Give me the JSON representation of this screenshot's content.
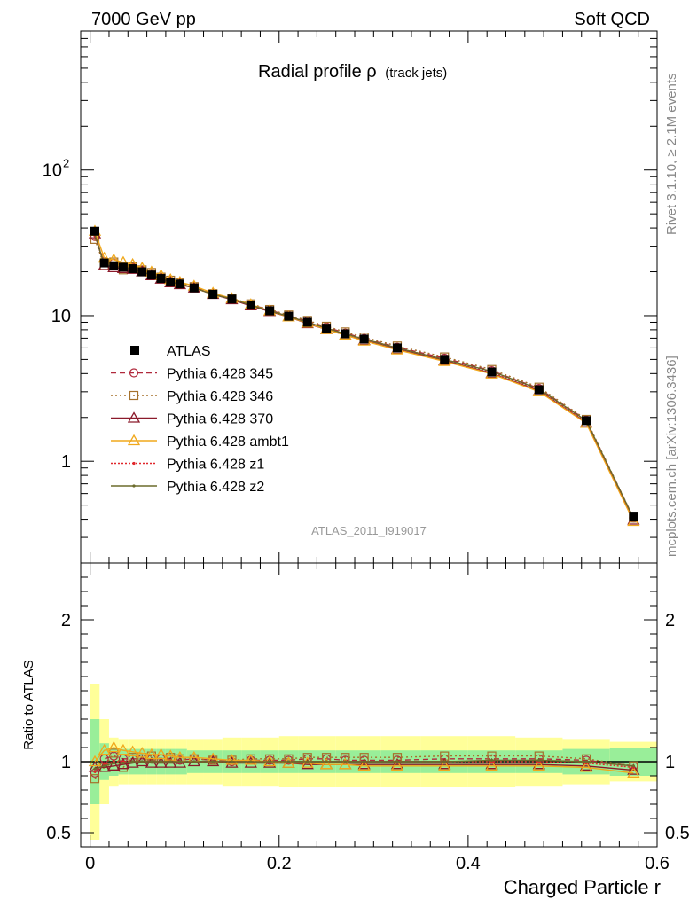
{
  "header": {
    "left": "7000 GeV pp",
    "right": "Soft QCD"
  },
  "side_text": {
    "right_top": "Rivet 3.1.10, ≥ 2.1M events",
    "right_bottom": "mcplots.cern.ch [arXiv:1306.3436]"
  },
  "watermark": "ATLAS_2011_I919017",
  "chart_data": {
    "type": "line",
    "title": "Radial profile ρ",
    "title_suffix": "(track jets)",
    "xlabel": "Charged Particle r",
    "ylabel_bottom": "Ratio to ATLAS",
    "xlim": [
      -0.01,
      0.6
    ],
    "ylim_main": [
      0.2,
      900
    ],
    "ylim_ratio": [
      0.4,
      2.4
    ],
    "yscale_main": "log",
    "x_ticks": [
      "0",
      "0.2",
      "0.4",
      "0.6"
    ],
    "y_ticks_main": [
      "1",
      "10",
      "10^2"
    ],
    "y_ticks_ratio": [
      "0.5",
      "1",
      "2"
    ],
    "legend_position": "center-left",
    "x": [
      0.005,
      0.015,
      0.025,
      0.035,
      0.045,
      0.055,
      0.065,
      0.075,
      0.085,
      0.095,
      0.11,
      0.13,
      0.15,
      0.17,
      0.19,
      0.21,
      0.23,
      0.25,
      0.27,
      0.29,
      0.325,
      0.375,
      0.425,
      0.475,
      0.525,
      0.575
    ],
    "atlas": {
      "name": "ATLAS",
      "values": [
        38,
        23,
        22,
        21.5,
        21,
        20,
        19,
        18,
        17,
        16.5,
        15.5,
        14,
        13,
        11.8,
        10.8,
        9.9,
        9,
        8.2,
        7.5,
        6.9,
        6,
        5,
        4.1,
        3.1,
        1.9,
        0.42
      ],
      "ratio_band_inner": [
        0.3,
        0.13,
        0.1,
        0.09,
        0.09,
        0.09,
        0.09,
        0.09,
        0.09,
        0.09,
        0.08,
        0.08,
        0.08,
        0.08,
        0.08,
        0.08,
        0.08,
        0.08,
        0.08,
        0.08,
        0.08,
        0.08,
        0.08,
        0.08,
        0.09,
        0.1
      ],
      "ratio_band_outer": [
        0.55,
        0.3,
        0.17,
        0.16,
        0.16,
        0.16,
        0.16,
        0.16,
        0.16,
        0.16,
        0.16,
        0.16,
        0.17,
        0.17,
        0.17,
        0.18,
        0.18,
        0.18,
        0.18,
        0.18,
        0.18,
        0.18,
        0.18,
        0.17,
        0.16,
        0.14
      ]
    },
    "series": [
      {
        "name": "Pythia 6.428 345",
        "color": "#b0293c",
        "dash": "6,4",
        "marker": "circle-open",
        "ratio": [
          0.92,
          1.02,
          1.04,
          1.02,
          1.02,
          1.02,
          1.02,
          1.02,
          1.02,
          1.01,
          1.02,
          1.01,
          1.0,
          1.01,
          1.01,
          1.01,
          1.02,
          1.02,
          1.01,
          1.01,
          1.01,
          1.02,
          1.02,
          1.02,
          1.01,
          0.97
        ]
      },
      {
        "name": "Pythia 6.428 346",
        "color": "#a5712b",
        "dash": "2,3",
        "marker": "square-open",
        "ratio": [
          0.88,
          0.96,
          1.06,
          0.96,
          1.03,
          1.03,
          1.04,
          1.02,
          1.03,
          1.02,
          1.02,
          1.01,
          1.01,
          1.02,
          1.02,
          1.02,
          1.03,
          1.03,
          1.03,
          1.03,
          1.03,
          1.04,
          1.04,
          1.04,
          1.02,
          0.97
        ]
      },
      {
        "name": "Pythia 6.428 370",
        "color": "#8b1a2b",
        "dash": "",
        "marker": "triangle-open",
        "ratio": [
          0.96,
          0.96,
          0.97,
          0.98,
          0.99,
          1.0,
          0.99,
          0.99,
          0.99,
          0.99,
          1.0,
          1.0,
          0.99,
          0.99,
          0.99,
          0.99,
          0.98,
          0.98,
          0.98,
          0.98,
          0.98,
          0.98,
          0.98,
          0.98,
          0.97,
          0.94
        ]
      },
      {
        "name": "Pythia 6.428 ambt1",
        "color": "#f0a81c",
        "dash": "",
        "marker": "triangle-open",
        "ratio": [
          1.0,
          1.08,
          1.1,
          1.08,
          1.07,
          1.06,
          1.05,
          1.05,
          1.04,
          1.03,
          1.03,
          1.02,
          1.01,
          1.01,
          1.0,
          0.99,
          0.99,
          0.98,
          0.98,
          0.97,
          0.97,
          0.97,
          0.97,
          0.97,
          0.96,
          0.92
        ]
      },
      {
        "name": "Pythia 6.428 z1",
        "color": "#e0262b",
        "dash": "2,2",
        "marker": "dot",
        "ratio": [
          0.93,
          0.98,
          1.0,
          1.0,
          1.0,
          1.0,
          1.0,
          1.0,
          1.0,
          1.0,
          1.0,
          1.0,
          1.0,
          1.0,
          1.0,
          1.0,
          1.0,
          1.0,
          1.0,
          1.0,
          1.0,
          1.0,
          1.0,
          1.0,
          0.99,
          0.96
        ]
      },
      {
        "name": "Pythia 6.428 z2",
        "color": "#6b6b2b",
        "dash": "",
        "marker": "dot",
        "ratio": [
          0.95,
          0.97,
          0.99,
          0.99,
          1.0,
          1.0,
          1.0,
          1.0,
          1.0,
          1.0,
          1.0,
          1.0,
          1.0,
          1.0,
          1.0,
          1.0,
          1.0,
          1.0,
          1.0,
          1.0,
          1.0,
          1.0,
          1.01,
          1.01,
          1.0,
          0.97
        ]
      }
    ]
  }
}
